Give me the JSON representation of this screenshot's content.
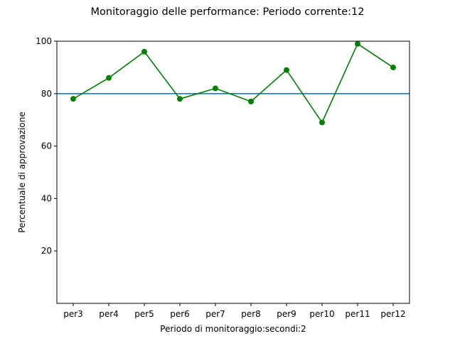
{
  "chart_data": {
    "type": "line",
    "title": "Monitoraggio delle performance: Periodo corrente:12",
    "xlabel": "Periodo di monitoraggio:secondi:2",
    "ylabel": "Percentuale di approvazione",
    "categories": [
      "per3",
      "per4",
      "per5",
      "per6",
      "per7",
      "per8",
      "per9",
      "per10",
      "per11",
      "per12"
    ],
    "series": [
      {
        "values": [
          78,
          86,
          96,
          78,
          82,
          77,
          89,
          69,
          99,
          90
        ],
        "color": "#008000",
        "marker": "circle"
      }
    ],
    "reference_line": {
      "y": 80,
      "color": "#1f77b4"
    },
    "ylim": [
      0,
      100
    ],
    "yticks": [
      20,
      40,
      60,
      80,
      100
    ],
    "grid": false,
    "legend": "none"
  }
}
